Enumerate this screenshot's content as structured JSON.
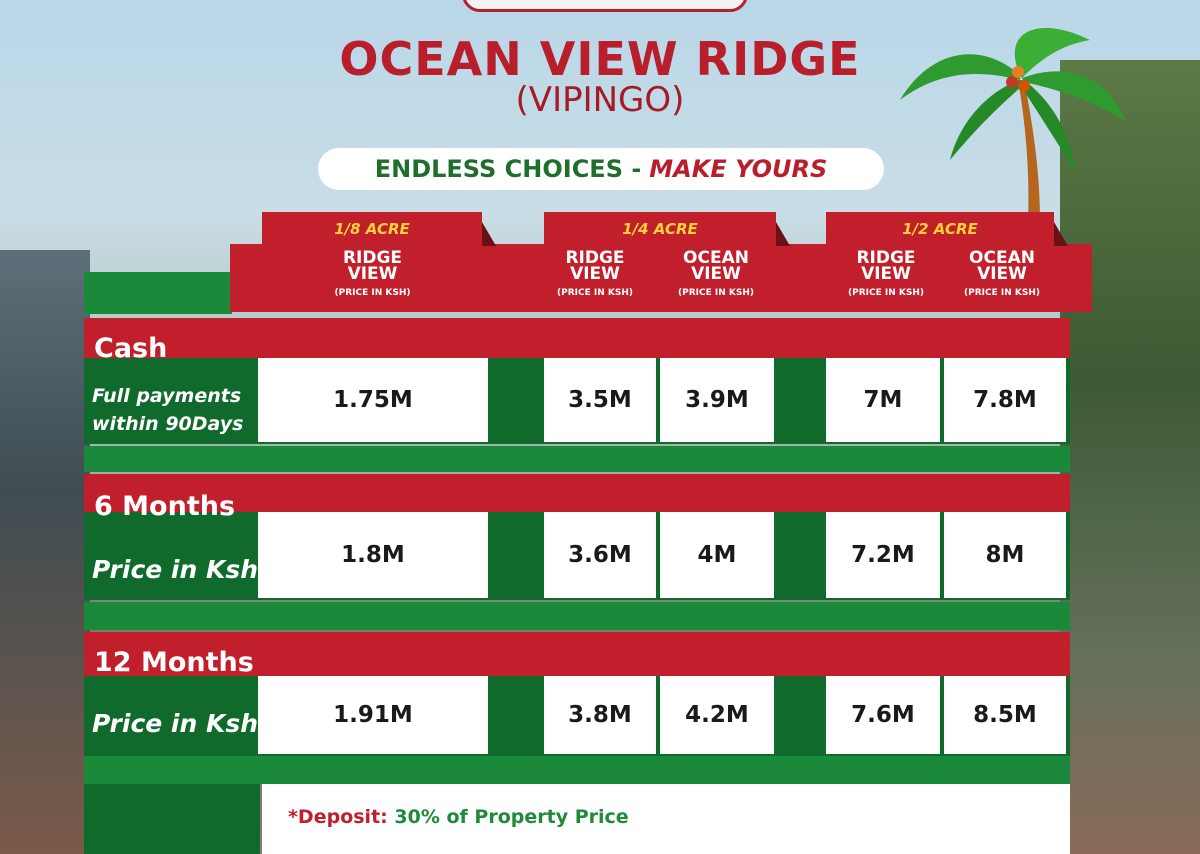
{
  "title": "OCEAN VIEW RIDGE",
  "subtitle": "(VIPINGO)",
  "tagline": {
    "part1": "ENDLESS CHOICES -",
    "part2": "MAKE YOURS"
  },
  "sizes": [
    "1/8 ACRE",
    "1/4 ACRE",
    "1/2 ACRE"
  ],
  "columns": [
    {
      "name": "RIDGE VIEW",
      "l1": "RIDGE",
      "l2": "VIEW",
      "unit": "(PRICE IN KSH)"
    },
    {
      "name": "RIDGE VIEW",
      "l1": "RIDGE",
      "l2": "VIEW",
      "unit": "(PRICE IN KSH)"
    },
    {
      "name": "OCEAN VIEW",
      "l1": "OCEAN",
      "l2": "VIEW",
      "unit": "(PRICE IN KSH)"
    },
    {
      "name": "RIDGE VIEW",
      "l1": "RIDGE",
      "l2": "VIEW",
      "unit": "(PRICE IN KSH)"
    },
    {
      "name": "OCEAN VIEW",
      "l1": "OCEAN",
      "l2": "VIEW",
      "unit": "(PRICE IN KSH)"
    }
  ],
  "rows": [
    {
      "plan": "Cash",
      "note": "Full payments within 90Days",
      "note1": "Full payments",
      "note2": "within 90Days",
      "prices": [
        "1.75M",
        "3.5M",
        "3.9M",
        "7M",
        "7.8M"
      ]
    },
    {
      "plan": "6 Months",
      "note": "Price in Ksh",
      "prices": [
        "1.8M",
        "3.6M",
        "4M",
        "7.2M",
        "8M"
      ]
    },
    {
      "plan": "12 Months",
      "note": "Price in Ksh",
      "prices": [
        "1.91M",
        "3.8M",
        "4.2M",
        "7.6M",
        "8.5M"
      ]
    }
  ],
  "footer": {
    "label": "*Deposit:",
    "text": "30% of Property Price"
  },
  "colors": {
    "red": "#c21f2c",
    "green": "#1a8a3a",
    "dark_green": "#0f6a2c",
    "yellow": "#ffd23a"
  }
}
